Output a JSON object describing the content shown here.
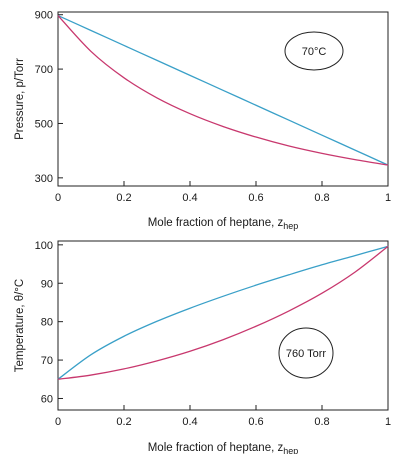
{
  "chart_data": [
    {
      "type": "line",
      "xlabel": "Mole fraction of heptane, z",
      "xlabel_sub": "hep",
      "ylabel": "Pressure, p/Torr",
      "xlim": [
        0,
        1
      ],
      "ylim": [
        270,
        910
      ],
      "xticks": [
        0,
        0.2,
        0.4,
        0.6,
        0.8,
        1
      ],
      "xtick_labels": [
        "0",
        "0.2",
        "0.4",
        "0.6",
        "0.8",
        "1"
      ],
      "yticks": [
        300,
        500,
        700,
        900
      ],
      "ytick_labels": [
        "300",
        "500",
        "700",
        "900"
      ],
      "annotation": "70°C",
      "grid": false,
      "series": [
        {
          "color": "#3aa0c8",
          "x": [
            0,
            0.1,
            0.2,
            0.3,
            0.4,
            0.5,
            0.6,
            0.7,
            0.8,
            0.9,
            1
          ],
          "y": [
            897,
            842,
            787,
            732,
            677,
            622,
            567,
            512,
            457,
            402,
            347
          ]
        },
        {
          "color": "#c8386e",
          "x": [
            0,
            0.1,
            0.2,
            0.3,
            0.4,
            0.5,
            0.6,
            0.7,
            0.8,
            0.9,
            1
          ],
          "y": [
            897,
            765,
            668,
            594,
            536,
            489,
            450,
            417,
            390,
            367,
            347
          ]
        }
      ]
    },
    {
      "type": "line",
      "xlabel": "Mole fraction of heptane, z",
      "xlabel_sub": "hep",
      "ylabel": "Temperature, θ/°C",
      "xlim": [
        0,
        1
      ],
      "ylim": [
        57,
        101
      ],
      "xticks": [
        0,
        0.2,
        0.4,
        0.6,
        0.8,
        1
      ],
      "xtick_labels": [
        "0",
        "0.2",
        "0.4",
        "0.6",
        "0.8",
        "1"
      ],
      "yticks": [
        60,
        70,
        80,
        90,
        100
      ],
      "ytick_labels": [
        "60",
        "70",
        "80",
        "90",
        "100"
      ],
      "annotation": "760 Torr",
      "grid": false,
      "series": [
        {
          "color": "#3aa0c8",
          "x": [
            0,
            0.1,
            0.2,
            0.3,
            0.4,
            0.5,
            0.6,
            0.7,
            0.8,
            0.9,
            1
          ],
          "y": [
            65,
            71.4,
            76.2,
            80.1,
            83.5,
            86.6,
            89.5,
            92.2,
            94.8,
            97.2,
            99.6
          ]
        },
        {
          "color": "#c8386e",
          "x": [
            0,
            0.1,
            0.2,
            0.3,
            0.4,
            0.5,
            0.6,
            0.7,
            0.8,
            0.9,
            1
          ],
          "y": [
            65,
            66.1,
            67.7,
            69.8,
            72.3,
            75.3,
            78.8,
            82.8,
            87.4,
            92.9,
            99.6
          ]
        }
      ]
    }
  ]
}
